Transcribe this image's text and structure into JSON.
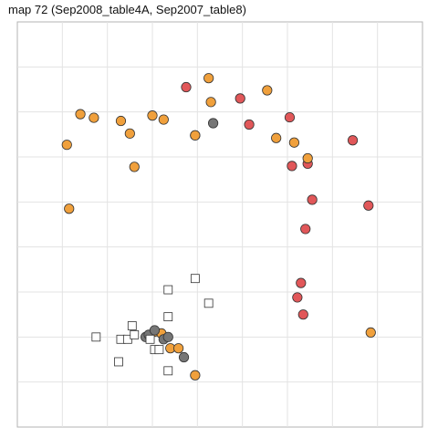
{
  "title": "map 72 (Sep2008_table4A, Sep2007_table8)",
  "chart_data": {
    "type": "scatter",
    "title": "map 72 (Sep2008_table4A, Sep2007_table8)",
    "xlabel": "",
    "ylabel": "",
    "xlim": [
      0,
      9
    ],
    "ylim": [
      0,
      9
    ],
    "grid": true,
    "legend": "none",
    "series": [
      {
        "color": "#e15759",
        "marker": "circle",
        "points": [
          [
            3.75,
            7.55
          ],
          [
            4.95,
            7.3
          ],
          [
            5.15,
            6.72
          ],
          [
            6.05,
            6.88
          ],
          [
            7.45,
            6.37
          ],
          [
            6.45,
            5.85
          ],
          [
            6.1,
            5.8
          ],
          [
            6.55,
            5.05
          ],
          [
            7.8,
            4.92
          ],
          [
            6.4,
            4.4
          ],
          [
            6.3,
            3.2
          ],
          [
            6.22,
            2.88
          ],
          [
            6.35,
            2.5
          ]
        ]
      },
      {
        "color": "#f0a03c",
        "marker": "circle",
        "points": [
          [
            4.25,
            7.75
          ],
          [
            5.55,
            7.48
          ],
          [
            4.3,
            7.22
          ],
          [
            1.4,
            6.95
          ],
          [
            1.7,
            6.87
          ],
          [
            3.0,
            6.92
          ],
          [
            3.25,
            6.83
          ],
          [
            2.3,
            6.8
          ],
          [
            2.5,
            6.52
          ],
          [
            3.95,
            6.48
          ],
          [
            5.75,
            6.42
          ],
          [
            6.15,
            6.32
          ],
          [
            1.1,
            6.27
          ],
          [
            6.45,
            5.97
          ],
          [
            2.6,
            5.78
          ],
          [
            1.15,
            4.85
          ],
          [
            3.95,
            6.48
          ],
          [
            3.05,
            2.12
          ],
          [
            3.2,
            2.08
          ],
          [
            3.4,
            1.75
          ],
          [
            3.58,
            1.75
          ],
          [
            3.95,
            1.15
          ],
          [
            7.85,
            2.1
          ]
        ]
      },
      {
        "color": "#767676",
        "marker": "circle",
        "points": [
          [
            4.35,
            6.75
          ],
          [
            2.85,
            2.0
          ],
          [
            2.92,
            2.05
          ],
          [
            3.05,
            2.15
          ],
          [
            3.25,
            1.95
          ],
          [
            3.35,
            2.0
          ],
          [
            3.7,
            1.55
          ]
        ]
      },
      {
        "color": "#ffffff",
        "marker": "square",
        "points": [
          [
            3.95,
            3.3
          ],
          [
            3.35,
            3.05
          ],
          [
            4.25,
            2.75
          ],
          [
            3.35,
            2.45
          ],
          [
            2.55,
            2.25
          ],
          [
            1.75,
            2.0
          ],
          [
            2.3,
            1.95
          ],
          [
            2.45,
            1.95
          ],
          [
            2.6,
            2.05
          ],
          [
            2.95,
            1.95
          ],
          [
            3.05,
            1.72
          ],
          [
            3.15,
            1.72
          ],
          [
            2.25,
            1.45
          ],
          [
            3.35,
            1.25
          ]
        ]
      }
    ]
  }
}
